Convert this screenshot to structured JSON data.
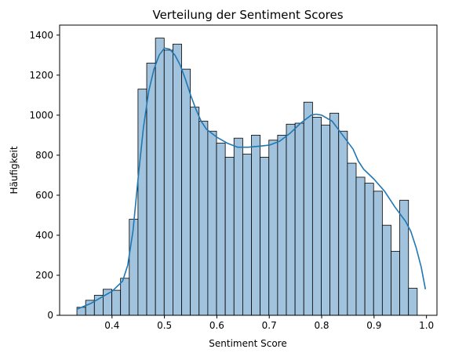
{
  "chart_data": {
    "type": "bar",
    "title": "Verteilung der Sentiment Scores",
    "xlabel": "Sentiment Score",
    "ylabel": "Häufigkeit",
    "xlim": [
      0.3,
      1.02
    ],
    "ylim": [
      0,
      1450
    ],
    "xticks": [
      "0.4",
      "0.5",
      "0.6",
      "0.7",
      "0.8",
      "0.9",
      "1.0"
    ],
    "yticks": [
      "0",
      "200",
      "400",
      "600",
      "800",
      "1000",
      "1200",
      "1400"
    ],
    "bins": {
      "start": 0.333,
      "width": 0.01665,
      "counts": [
        40,
        75,
        100,
        130,
        125,
        185,
        480,
        1130,
        1260,
        1385,
        1325,
        1355,
        1230,
        1040,
        970,
        920,
        860,
        790,
        885,
        805,
        900,
        790,
        875,
        900,
        955,
        960,
        1065,
        990,
        950,
        1010,
        920,
        760,
        690,
        660,
        620,
        450,
        320,
        575,
        135
      ]
    },
    "kde": {
      "x": [
        0.333,
        0.36,
        0.38,
        0.4,
        0.42,
        0.43,
        0.44,
        0.45,
        0.46,
        0.47,
        0.48,
        0.49,
        0.5,
        0.51,
        0.52,
        0.53,
        0.54,
        0.55,
        0.56,
        0.57,
        0.58,
        0.6,
        0.62,
        0.64,
        0.66,
        0.68,
        0.7,
        0.72,
        0.74,
        0.76,
        0.78,
        0.79,
        0.8,
        0.82,
        0.84,
        0.86,
        0.87,
        0.88,
        0.9,
        0.92,
        0.94,
        0.96,
        0.97,
        0.98,
        0.99,
        0.998
      ],
      "y": [
        30,
        60,
        90,
        120,
        170,
        250,
        420,
        690,
        940,
        1120,
        1230,
        1300,
        1335,
        1330,
        1300,
        1250,
        1180,
        1100,
        1030,
        970,
        930,
        890,
        860,
        840,
        840,
        845,
        850,
        870,
        910,
        960,
        1000,
        1005,
        1000,
        970,
        900,
        830,
        770,
        730,
        680,
        620,
        540,
        470,
        420,
        340,
        240,
        130
      ]
    },
    "colors": {
      "bar_fill": "#a1c3dd",
      "bar_edge": "#000000",
      "kde_line": "#1f77b4"
    }
  }
}
